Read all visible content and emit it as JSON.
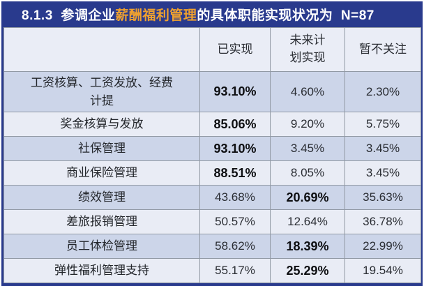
{
  "title": {
    "prefix": "8.1.3  参调企业",
    "highlight": "薪酬福利管理",
    "suffix": "的具体职能实现状况为  N=87"
  },
  "colors": {
    "navy": "#293a8d",
    "orange_highlight": "#efa12f",
    "row_dark": "#ccd5e9",
    "row_light": "#e9ecf5",
    "grid_line": "#9199a4"
  },
  "table": {
    "columns": [
      "",
      "已实现",
      "未来计\n划实现",
      "暂不关注"
    ],
    "rows": [
      {
        "label": "工资核算、工资发放、经费\n计提",
        "values": [
          "93.10%",
          "4.60%",
          "2.30%"
        ],
        "bold_col": 0
      },
      {
        "label": "奖金核算与发放",
        "values": [
          "85.06%",
          "9.20%",
          "5.75%"
        ],
        "bold_col": 0
      },
      {
        "label": "社保管理",
        "values": [
          "93.10%",
          "3.45%",
          "3.45%"
        ],
        "bold_col": 0
      },
      {
        "label": "商业保险管理",
        "values": [
          "88.51%",
          "8.05%",
          "3.45%"
        ],
        "bold_col": 0
      },
      {
        "label": "绩效管理",
        "values": [
          "43.68%",
          "20.69%",
          "35.63%"
        ],
        "bold_col": 1
      },
      {
        "label": "差旅报销管理",
        "values": [
          "50.57%",
          "12.64%",
          "36.78%"
        ],
        "bold_col": -1
      },
      {
        "label": "员工体检管理",
        "values": [
          "58.62%",
          "18.39%",
          "22.99%"
        ],
        "bold_col": 1
      },
      {
        "label": "弹性福利管理支持",
        "values": [
          "55.17%",
          "25.29%",
          "19.54%"
        ],
        "bold_col": 1
      }
    ]
  },
  "chart_data": {
    "type": "table",
    "title": "8.1.3 参调企业薪酬福利管理的具体职能实现状况为 N=87",
    "sample_size": 87,
    "categories": [
      "工资核算、工资发放、经费计提",
      "奖金核算与发放",
      "社保管理",
      "商业保险管理",
      "绩效管理",
      "差旅报销管理",
      "员工体检管理",
      "弹性福利管理支持"
    ],
    "series": [
      {
        "name": "已实现",
        "unit": "%",
        "values": [
          93.1,
          85.06,
          93.1,
          88.51,
          43.68,
          50.57,
          58.62,
          55.17
        ]
      },
      {
        "name": "未来计划实现",
        "unit": "%",
        "values": [
          4.6,
          9.2,
          3.45,
          8.05,
          20.69,
          12.64,
          18.39,
          25.29
        ]
      },
      {
        "name": "暂不关注",
        "unit": "%",
        "values": [
          2.3,
          5.75,
          3.45,
          3.45,
          35.63,
          36.78,
          22.99,
          19.54
        ]
      }
    ]
  }
}
